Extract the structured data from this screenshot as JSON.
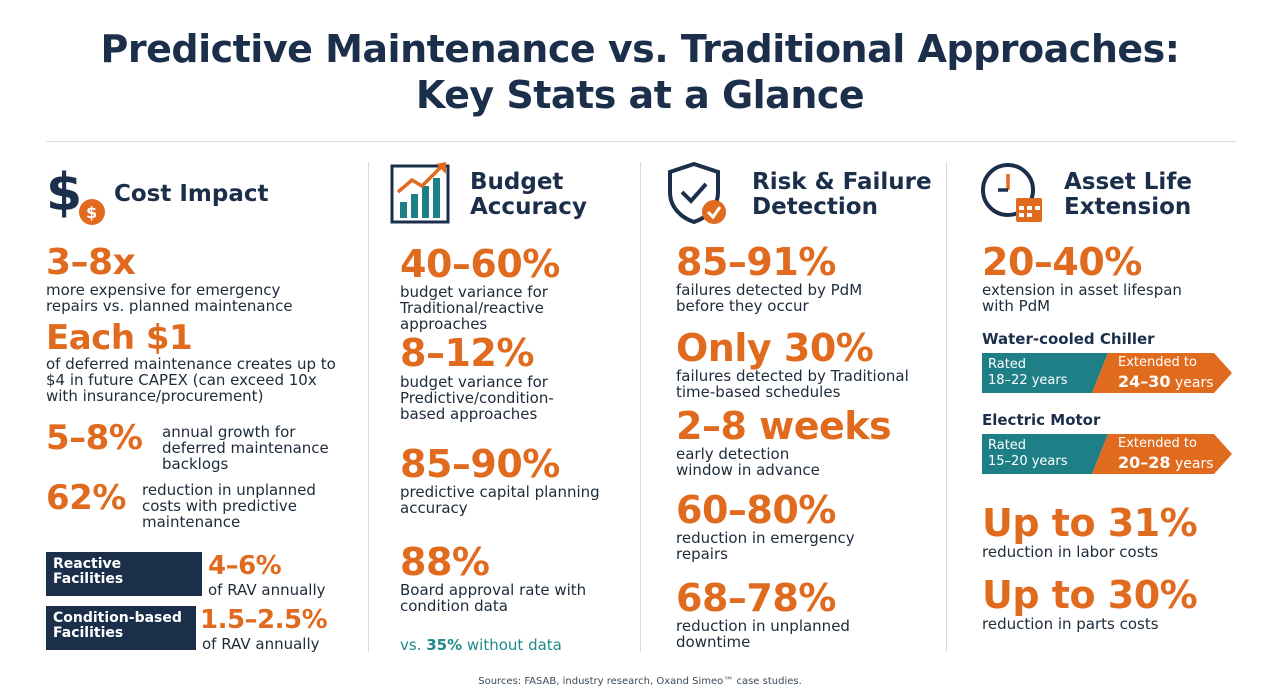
{
  "title": {
    "line1": "Predictive Maintenance vs. Traditional Approaches:",
    "line2": "Key Stats at a Glance"
  },
  "columns": {
    "cost": {
      "heading": "Cost Impact",
      "icon": "dollar-icon",
      "stats": [
        {
          "value": "3–8x",
          "desc": "more expensive for emergency\nrepairs vs. planned maintenance"
        },
        {
          "value": "Each $1",
          "desc": "of deferred maintenance creates up to\n$4 in future CAPEX (can exceed 10x\nwith insurance/procurement)"
        },
        {
          "value": "5–8%",
          "desc": "annual growth for\ndeferred maintenance\nbacklogs"
        },
        {
          "value": "62%",
          "desc": "reduction in unplanned\ncosts with predictive\nmaintenance"
        }
      ],
      "facilities": [
        {
          "label": "Reactive\nFacilities",
          "value": "4–6%",
          "desc": "of RAV annually"
        },
        {
          "label": "Condition-based\nFacilities",
          "value": "1.5–2.5%",
          "desc": "of RAV annually"
        }
      ]
    },
    "budget": {
      "heading": "Budget\nAccuracy",
      "icon": "bar-chart-trend-icon",
      "stats": [
        {
          "value": "40–60%",
          "desc": "budget variance for\nTraditional/reactive approaches"
        },
        {
          "value": "8–12%",
          "desc": "budget variance for\nPredictive/condition-\nbased approaches"
        },
        {
          "value": "85–90%",
          "desc": "predictive capital planning\naccuracy"
        },
        {
          "value": "88%",
          "desc": "Board approval rate with\ncondition data"
        }
      ],
      "note_prefix": "vs. ",
      "note_value": "35%",
      "note_suffix": " without data"
    },
    "risk": {
      "heading": "Risk & Failure\nDetection",
      "icon": "shield-check-icon",
      "stats": [
        {
          "value": "85–91%",
          "desc": "failures detected by PdM\nbefore they occur"
        },
        {
          "value": "Only 30%",
          "desc": "failures detected by Traditional\ntime-based schedules"
        },
        {
          "value": "2–8 weeks",
          "desc": "early detection\nwindow in advance"
        },
        {
          "value": "60–80%",
          "desc": "reduction in emergency\nrepairs"
        },
        {
          "value": "68–78%",
          "desc": "reduction in unplanned\ndowntime"
        }
      ]
    },
    "asset": {
      "heading": "Asset Life\nExtension",
      "icon": "clock-calendar-icon",
      "stats": [
        {
          "value": "20–40%",
          "desc": "extension in asset lifespan\nwith PdM"
        }
      ],
      "equipment": [
        {
          "name": "Water-cooled Chiller",
          "rated_label": "Rated",
          "rated": "18–22 years",
          "ext_label": "Extended to",
          "ext_value": "24–30",
          "ext_unit": " years"
        },
        {
          "name": "Electric Motor",
          "rated_label": "Rated",
          "rated": "15–20 years",
          "ext_label": "Extended to",
          "ext_value": "20–28",
          "ext_unit": " years"
        }
      ],
      "savings": [
        {
          "value": "Up to 31%",
          "desc": "reduction in labor costs"
        },
        {
          "value": "Up to 30%",
          "desc": "reduction in parts costs"
        }
      ]
    }
  },
  "footer": "Sources: FASAB, industry research, Oxand Simeo™ case studies.",
  "colors": {
    "navy": "#1b2f4b",
    "orange": "#e06b1f",
    "teal": "#1f7f86"
  }
}
